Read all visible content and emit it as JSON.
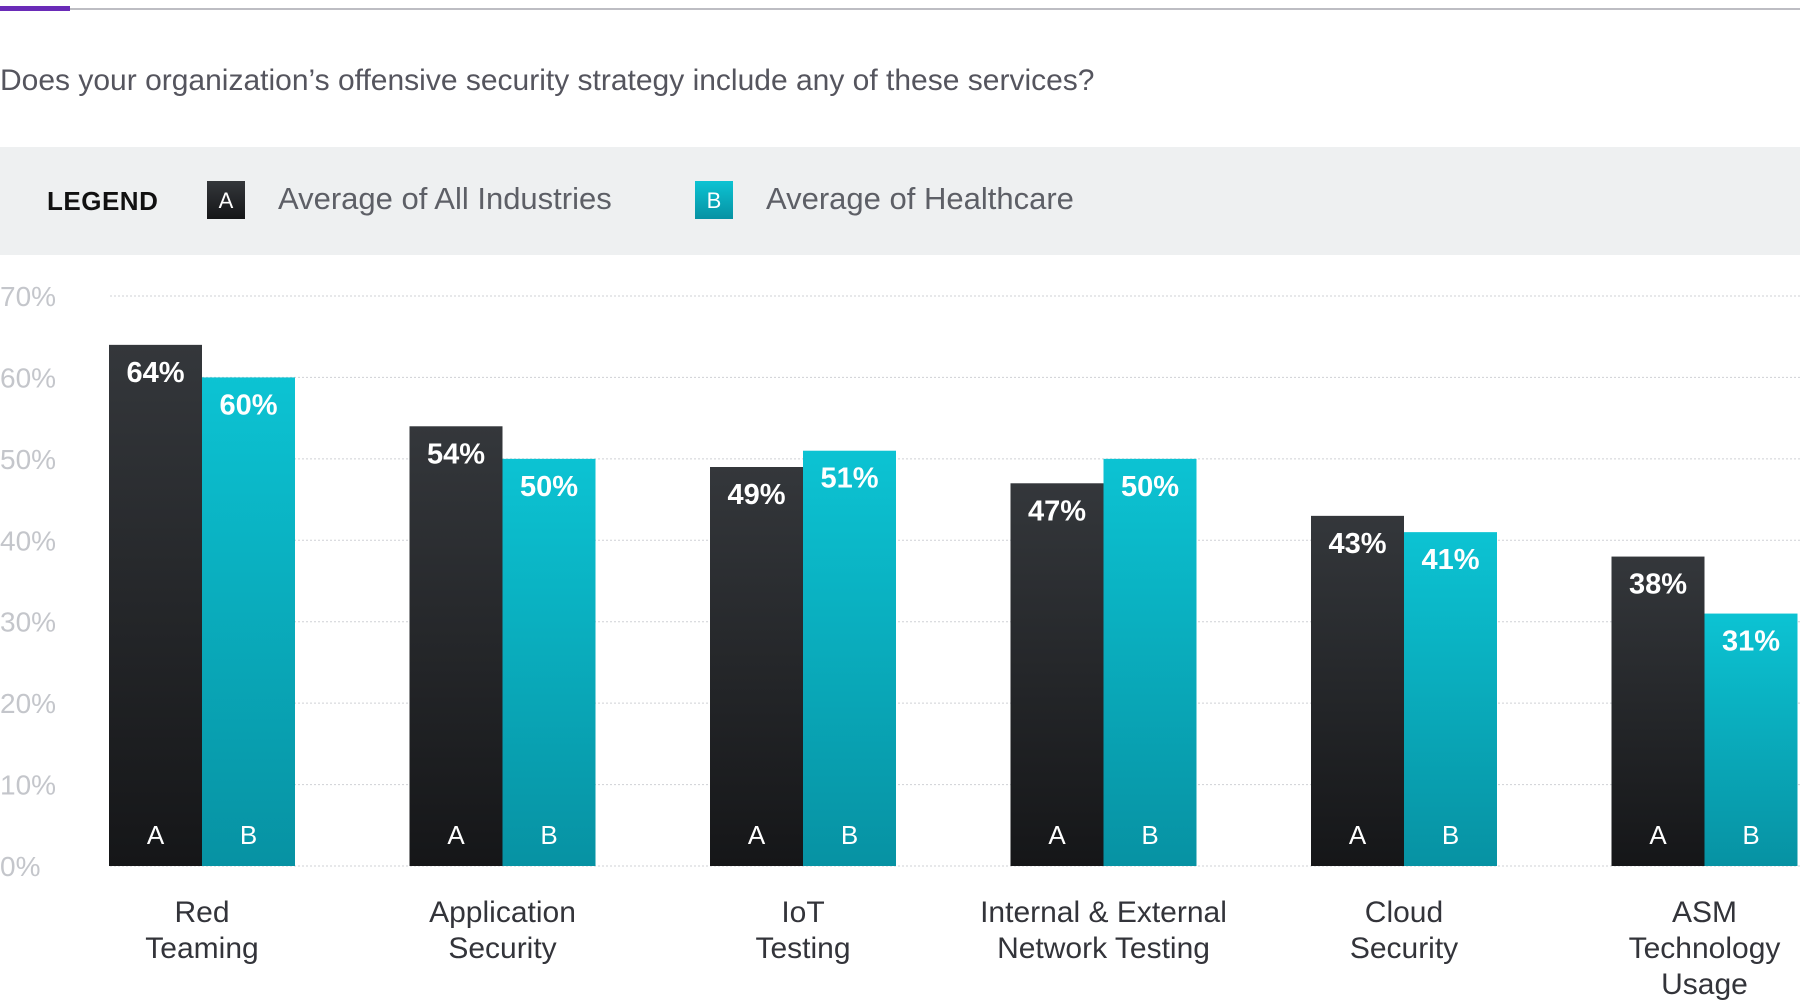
{
  "question": "Does your organization’s offensive security strategy include any of these services?",
  "legend": {
    "title": "LEGEND",
    "items": [
      {
        "key": "A",
        "label": "Average of All Industries",
        "color": "#1c1d20"
      },
      {
        "key": "B",
        "label": "Average of Healthcare",
        "color": "#06a9bd"
      }
    ]
  },
  "colors": {
    "accent_line": "#6a2bb8",
    "rule_line": "#bdbdc3",
    "legend_band": "#eef0f1",
    "grid": "#cfd1d5",
    "dark_bar_top": "#34373b",
    "dark_bar_bottom": "#151618",
    "teal_bar_top": "#0cc3d3",
    "teal_bar_bottom": "#0792a3"
  },
  "chart_data": {
    "type": "bar",
    "title": "Does your organization’s offensive security strategy include any of these services?",
    "xlabel": "",
    "ylabel": "",
    "ylim": [
      0,
      70
    ],
    "yticks": [
      "0%",
      "10%",
      "20%",
      "30%",
      "40%",
      "50%",
      "60%",
      "70%"
    ],
    "grid": true,
    "legend_position": "top",
    "categories": [
      [
        "Red",
        "Teaming"
      ],
      [
        "Application",
        "Security"
      ],
      [
        "IoT",
        "Testing"
      ],
      [
        "Internal & External",
        "Network Testing"
      ],
      [
        "Cloud",
        "Security"
      ],
      [
        "ASM",
        "Technology",
        "Usage"
      ]
    ],
    "series": [
      {
        "name": "Average of All Industries",
        "key": "A",
        "values": [
          64,
          54,
          49,
          47,
          43,
          38
        ],
        "labels": [
          "64%",
          "54%",
          "49%",
          "47%",
          "43%",
          "38%"
        ]
      },
      {
        "name": "Average of Healthcare",
        "key": "B",
        "values": [
          60,
          50,
          51,
          50,
          41,
          31
        ],
        "labels": [
          "60%",
          "50%",
          "51%",
          "50%",
          "41%",
          "31%"
        ]
      }
    ]
  }
}
